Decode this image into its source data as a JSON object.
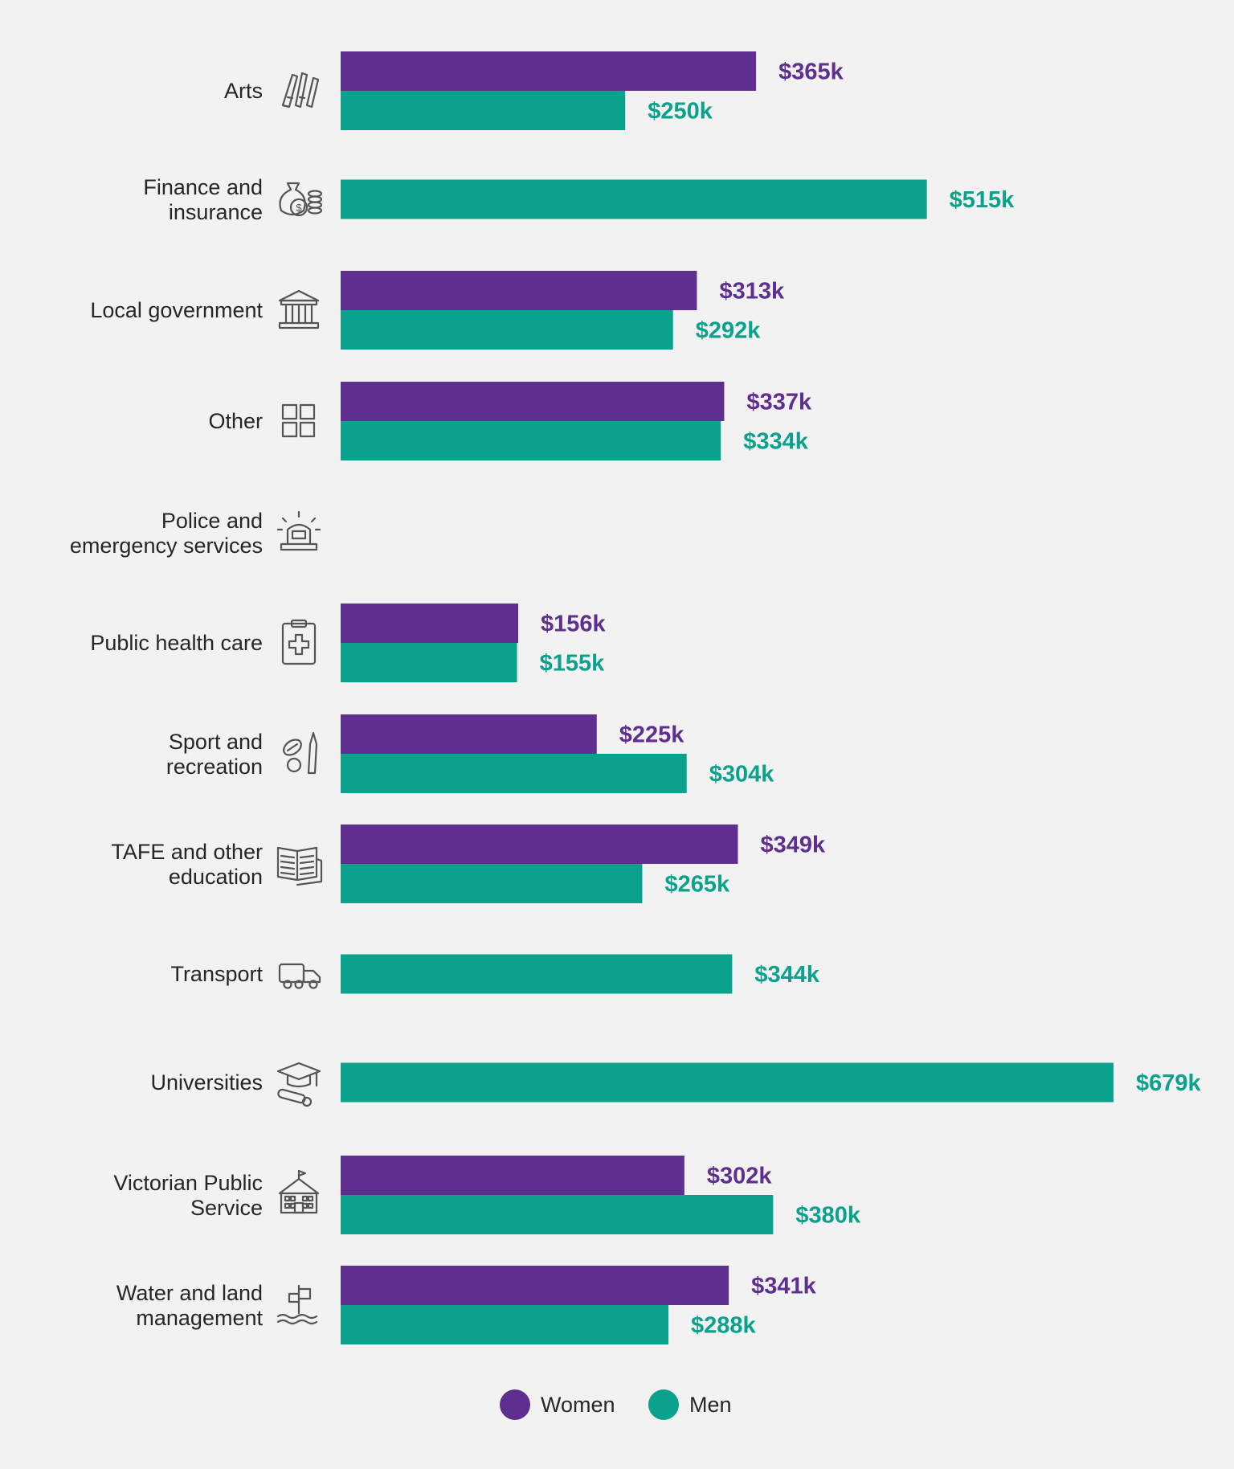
{
  "colors": {
    "women": "#5f2f8f",
    "men": "#0aa28c",
    "background": "#f2f2f2",
    "label": "#262626",
    "icon": "#555555"
  },
  "legend": {
    "women_label": "Women",
    "men_label": "Men"
  },
  "chart_data": {
    "type": "bar",
    "orientation": "horizontal",
    "categories": [
      [
        "Arts"
      ],
      [
        "Finance and",
        "insurance"
      ],
      [
        "Local government"
      ],
      [
        "Other"
      ],
      [
        "Police and",
        "emergency services"
      ],
      [
        "Public health care"
      ],
      [
        "Sport and",
        "recreation"
      ],
      [
        "TAFE and other",
        "education"
      ],
      [
        "Transport"
      ],
      [
        "Universities"
      ],
      [
        "Victorian Public",
        "Service"
      ],
      [
        "Water and land",
        "management"
      ]
    ],
    "category_icons": [
      "paintbrush-pencils-icon",
      "money-bag-coins-icon",
      "government-building-icon",
      "grid-squares-icon",
      "emergency-siren-icon",
      "medical-clipboard-icon",
      "sports-ball-bat-icon",
      "open-book-icon",
      "truck-icon",
      "graduation-cap-diploma-icon",
      "school-building-icon",
      "signpost-water-icon"
    ],
    "series": [
      {
        "name": "Women",
        "values": [
          365,
          null,
          313,
          337,
          null,
          156,
          225,
          349,
          null,
          null,
          302,
          341
        ],
        "labels": [
          "$365k",
          null,
          "$313k",
          "$337k",
          null,
          "$156k",
          "$225k",
          "$349k",
          null,
          null,
          "$302k",
          "$341k"
        ]
      },
      {
        "name": "Men",
        "values": [
          250,
          515,
          292,
          334,
          null,
          155,
          304,
          265,
          344,
          679,
          380,
          288
        ],
        "labels": [
          "$250k",
          "$515k",
          "$292k",
          "$334k",
          null,
          "$155k",
          "$304k",
          "$265k",
          "$344k",
          "$679k",
          "$380k",
          "$288k"
        ]
      }
    ],
    "unit": "$k",
    "xlim": [
      0,
      679
    ],
    "grid": false,
    "legend_position": "bottom-center"
  }
}
